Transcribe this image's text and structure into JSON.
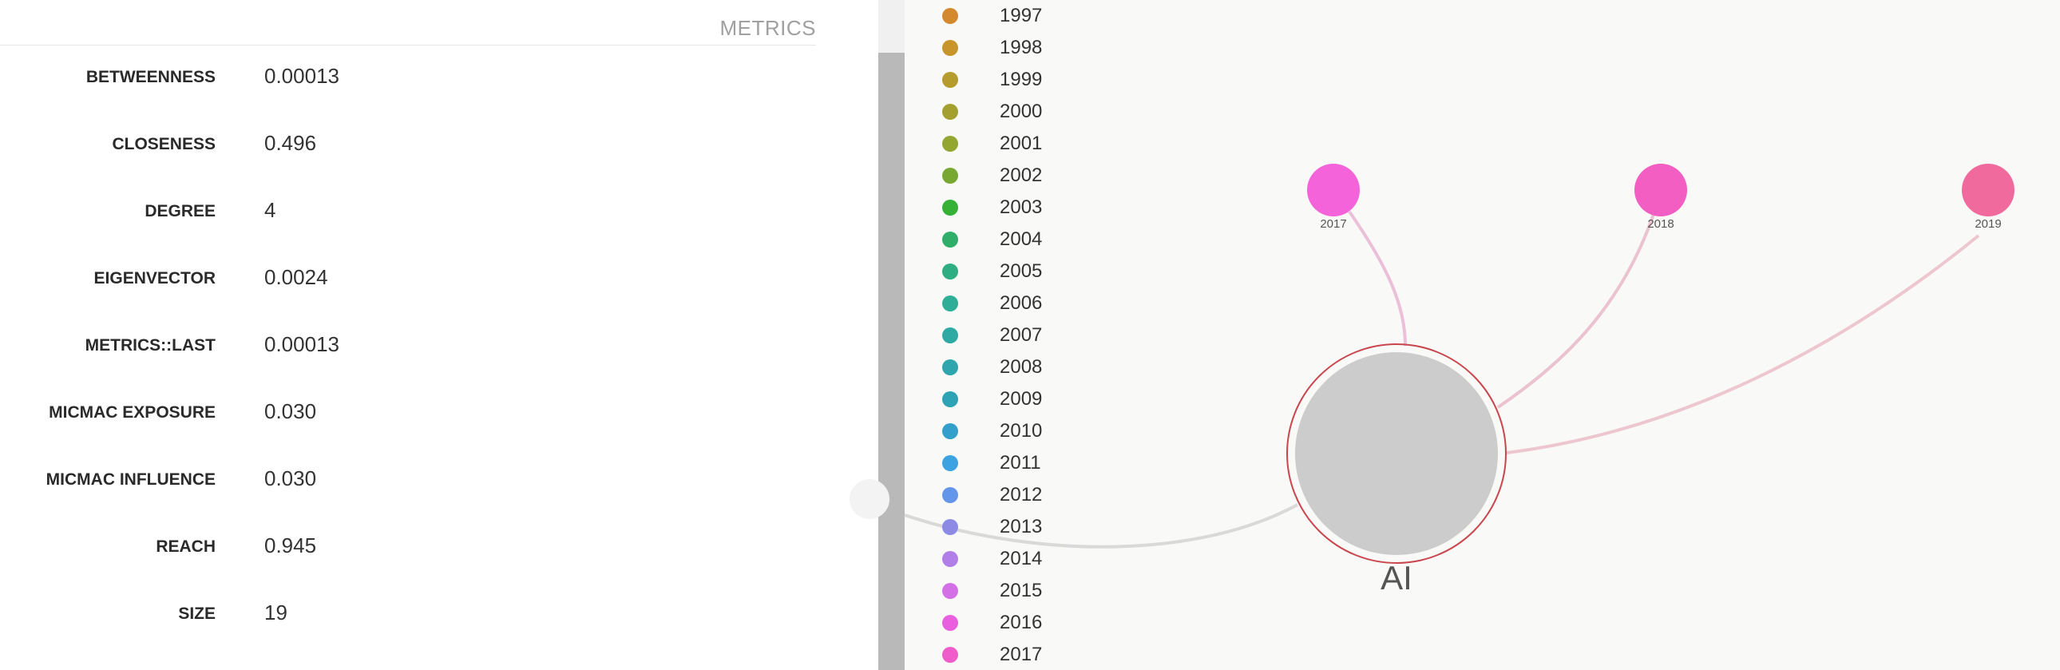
{
  "metrics": {
    "title": "METRICS",
    "rows": [
      {
        "label": "BETWEENNESS",
        "value": "0.00013"
      },
      {
        "label": "CLOSENESS",
        "value": "0.496"
      },
      {
        "label": "DEGREE",
        "value": "4"
      },
      {
        "label": "EIGENVECTOR",
        "value": "0.0024"
      },
      {
        "label": "METRICS::LAST",
        "value": "0.00013"
      },
      {
        "label": "MICMAC EXPOSURE",
        "value": "0.030"
      },
      {
        "label": "MICMAC INFLUENCE",
        "value": "0.030"
      },
      {
        "label": "REACH",
        "value": "0.945"
      },
      {
        "label": "SIZE",
        "value": "19"
      }
    ]
  },
  "legend": [
    {
      "year": "1997",
      "color": "#d4892f"
    },
    {
      "year": "1998",
      "color": "#c8952c"
    },
    {
      "year": "1999",
      "color": "#b59c2c"
    },
    {
      "year": "2000",
      "color": "#a3a02f"
    },
    {
      "year": "2001",
      "color": "#93a632"
    },
    {
      "year": "2002",
      "color": "#79a832"
    },
    {
      "year": "2003",
      "color": "#35b136"
    },
    {
      "year": "2004",
      "color": "#2fae6a"
    },
    {
      "year": "2005",
      "color": "#2fae83"
    },
    {
      "year": "2006",
      "color": "#2fae97"
    },
    {
      "year": "2007",
      "color": "#2fa9a4"
    },
    {
      "year": "2008",
      "color": "#2fa6ad"
    },
    {
      "year": "2009",
      "color": "#2fa3b6"
    },
    {
      "year": "2010",
      "color": "#33a0cb"
    },
    {
      "year": "2011",
      "color": "#3ca2e2"
    },
    {
      "year": "2012",
      "color": "#6396ea"
    },
    {
      "year": "2013",
      "color": "#8d8ae6"
    },
    {
      "year": "2014",
      "color": "#b17fe7"
    },
    {
      "year": "2015",
      "color": "#d470e6"
    },
    {
      "year": "2016",
      "color": "#e95fdd"
    },
    {
      "year": "2017",
      "color": "#f05cc9"
    }
  ],
  "graph": {
    "center_label": "AI",
    "nodes": [
      {
        "label": "2017",
        "color": "#f463d9"
      },
      {
        "label": "2018",
        "color": "#f25ec1"
      },
      {
        "label": "2019",
        "color": "#f16a9e"
      }
    ]
  }
}
